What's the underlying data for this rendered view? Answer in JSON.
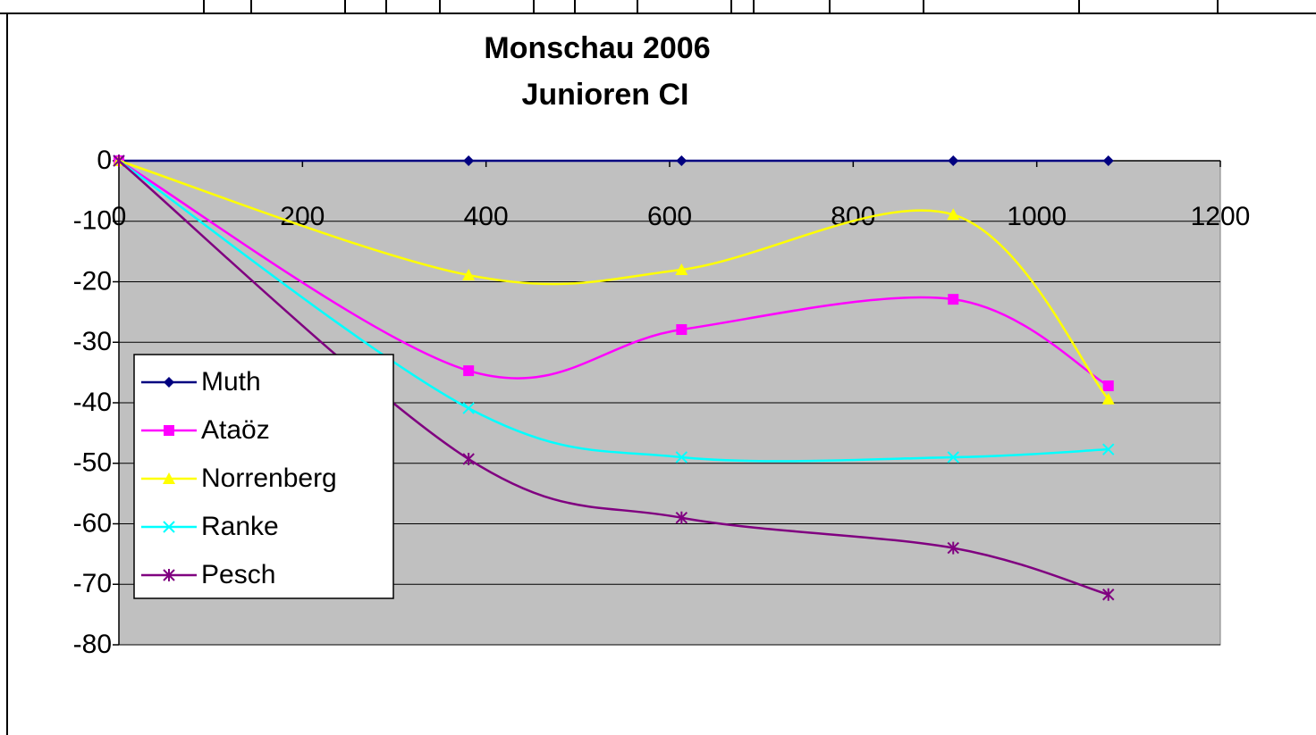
{
  "chart_data": {
    "type": "line",
    "title": [
      "Monschau 2006",
      "Junioren CI"
    ],
    "x": [
      0,
      381,
      613,
      909,
      1078
    ],
    "series": [
      {
        "name": "Muth",
        "color": "#000080",
        "marker": "diamond",
        "values": [
          0,
          0,
          0,
          0,
          0
        ]
      },
      {
        "name": "Ataöz",
        "color": "#ff00ff",
        "marker": "square",
        "values": [
          0,
          -34.7,
          -27.9,
          -22.9,
          -37.2
        ]
      },
      {
        "name": "Norrenberg",
        "color": "#ffff00",
        "marker": "triangle",
        "values": [
          0,
          -18.9,
          -18,
          -8.9,
          -39.4
        ]
      },
      {
        "name": "Ranke",
        "color": "#00ffff",
        "marker": "x",
        "values": [
          0,
          -40.9,
          -49,
          -49,
          -47.7
        ]
      },
      {
        "name": "Pesch",
        "color": "#800080",
        "marker": "star",
        "values": [
          0,
          -49.3,
          -59,
          -64,
          -71.7
        ]
      }
    ],
    "xlim": [
      0,
      1200
    ],
    "xticks": [
      0,
      200,
      400,
      600,
      800,
      1000,
      1200
    ],
    "ylim": [
      -80,
      0
    ],
    "yticks": [
      0,
      -10,
      -20,
      -30,
      -40,
      -50,
      -60,
      -70,
      -80
    ],
    "grid": true,
    "smooth": true,
    "legend": "left",
    "plot_background": "#c0c0c0"
  }
}
